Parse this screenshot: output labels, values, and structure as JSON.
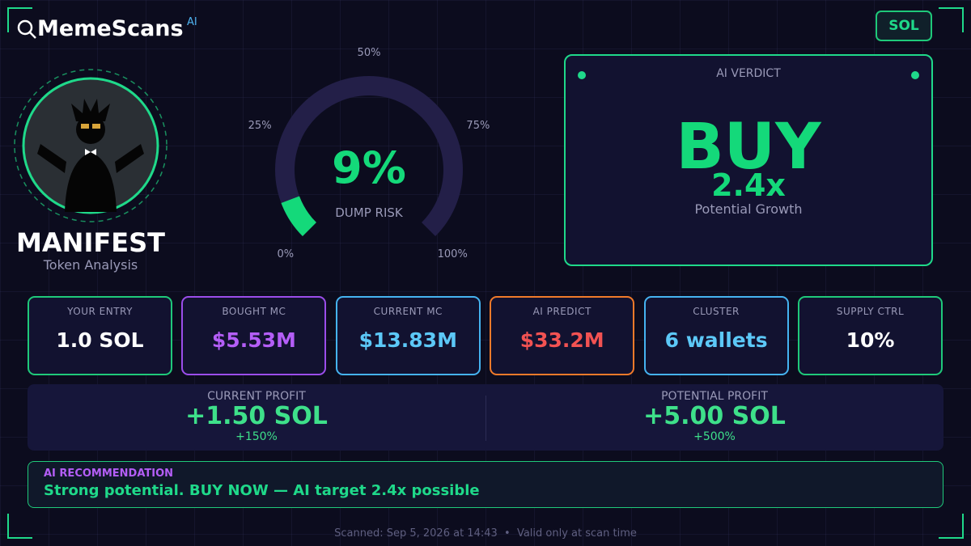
{
  "header": {
    "brand": "MemeScans",
    "brand_badge": "AI",
    "chain": "SOL"
  },
  "token": {
    "name": "MANIFEST",
    "subtitle": "Token Analysis"
  },
  "gauge": {
    "value": 9,
    "value_label": "9%",
    "label": "DUMP RISK",
    "color": "#14d97a",
    "track_color": "#231f48",
    "ticks": [
      {
        "value": 0,
        "label": "0%"
      },
      {
        "value": 25,
        "label": "25%"
      },
      {
        "value": 50,
        "label": "50%"
      },
      {
        "value": 75,
        "label": "75%"
      },
      {
        "value": 100,
        "label": "100%"
      }
    ]
  },
  "verdict": {
    "title": "AI VERDICT",
    "decision": "BUY",
    "multiplier": "2.4x",
    "caption": "Potential Growth"
  },
  "stats": [
    {
      "label": "YOUR ENTRY",
      "value": "1.0 SOL",
      "border": "#1fc97a",
      "color": "#ffffff"
    },
    {
      "label": "BOUGHT MC",
      "value": "$5.53M",
      "border": "#9b4dea",
      "color": "#b45ef7"
    },
    {
      "label": "CURRENT MC",
      "value": "$13.83M",
      "border": "#45b3f0",
      "color": "#5cc8f7"
    },
    {
      "label": "AI PREDICT",
      "value": "$33.2M",
      "border": "#f07a2a",
      "color": "#f25252"
    },
    {
      "label": "CLUSTER",
      "value": "6 wallets",
      "border": "#45b3f0",
      "color": "#5cc8f7"
    },
    {
      "label": "SUPPLY CTRL",
      "value": "10%",
      "border": "#1fc97a",
      "color": "#ffffff"
    }
  ],
  "profits": [
    {
      "label": "CURRENT PROFIT",
      "value": "+1.50 SOL",
      "percent": "+150%"
    },
    {
      "label": "POTENTIAL PROFIT",
      "value": "+5.00 SOL",
      "percent": "+500%"
    }
  ],
  "recommendation": {
    "label": "AI RECOMMENDATION",
    "text": "Strong potential. BUY NOW — AI target 2.4x possible"
  },
  "footer": "Scanned: Sep 5, 2026 at 14:43  •  Valid only at scan time"
}
